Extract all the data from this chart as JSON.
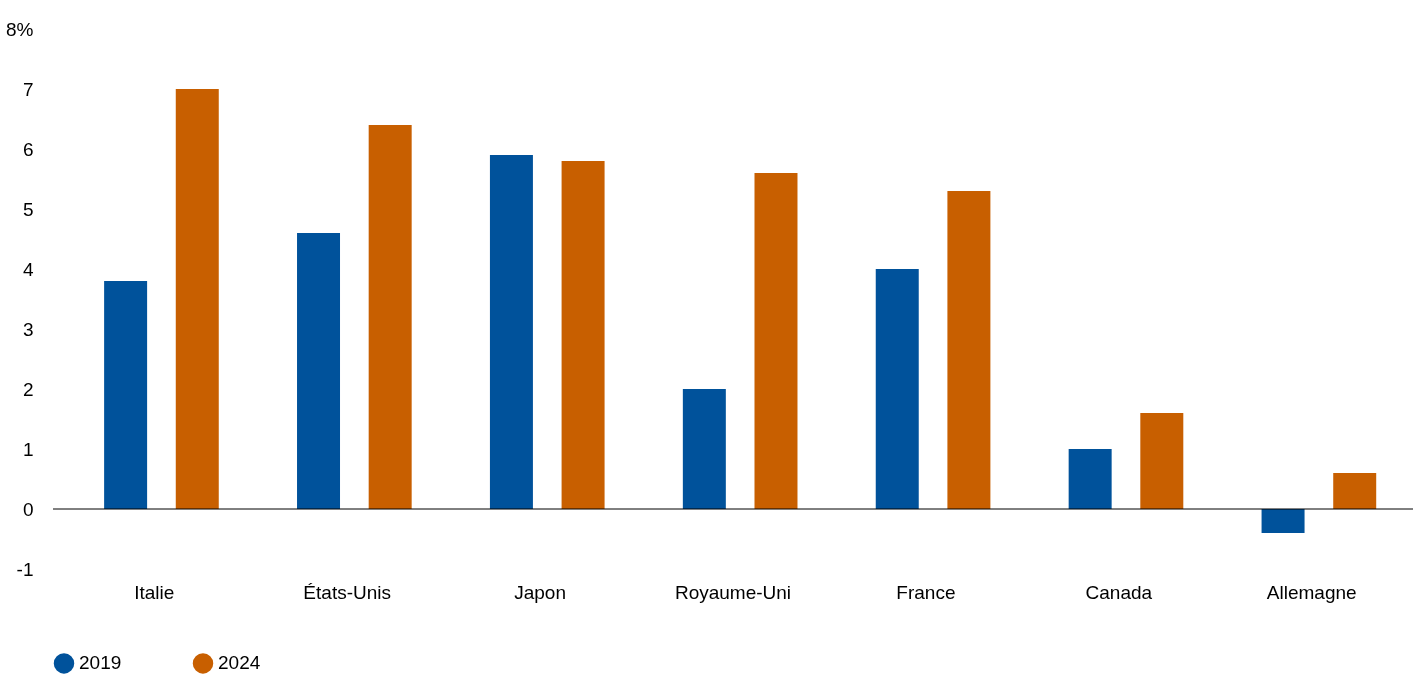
{
  "chart_data": {
    "type": "bar",
    "categories": [
      "Italie",
      "États-Unis",
      "Japon",
      "Royaume-Uni",
      "France",
      "Canada",
      "Allemagne"
    ],
    "series": [
      {
        "name": "2019",
        "color": "#00529b",
        "values": [
          3.8,
          4.6,
          5.9,
          2.0,
          4.0,
          1.0,
          -0.4
        ]
      },
      {
        "name": "2024",
        "color": "#c85f00",
        "values": [
          7.0,
          6.4,
          5.8,
          5.6,
          5.3,
          1.6,
          0.6
        ]
      }
    ],
    "ylim": [
      -1,
      8
    ],
    "yticks": [
      -1,
      0,
      1,
      2,
      3,
      4,
      5,
      6,
      7,
      {
        "value": 8,
        "label": "8%"
      }
    ],
    "ref_lines": [
      {
        "axis": "y",
        "value": 0,
        "color": "#000000"
      }
    ],
    "grid": false,
    "legend": "bottom"
  }
}
